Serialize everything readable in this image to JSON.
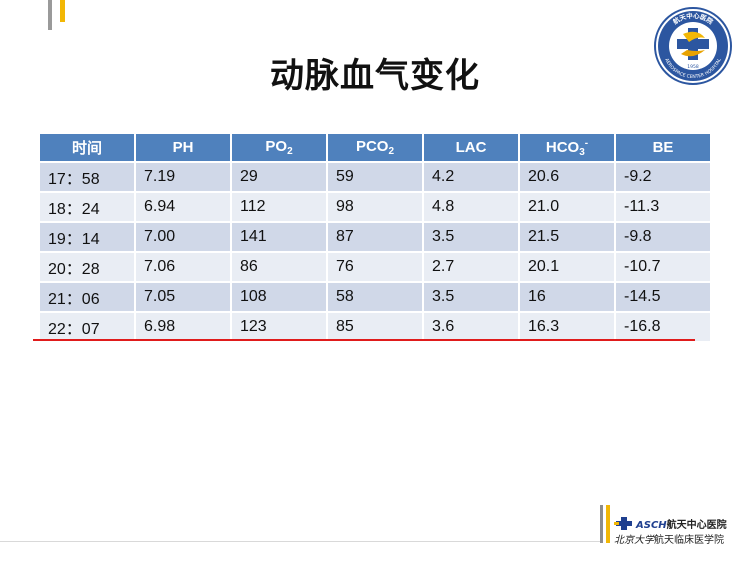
{
  "slide": {
    "title": "动脉血气变化"
  },
  "logo": {
    "top_text": "航天中心医院",
    "bottom_text": "AEROSPACE CENTER HOSPITAL",
    "year": "1958"
  },
  "table": {
    "headers": [
      {
        "base": "时间",
        "sub": "",
        "sup": ""
      },
      {
        "base": "PH",
        "sub": "",
        "sup": ""
      },
      {
        "base": "PO",
        "sub": "2",
        "sup": ""
      },
      {
        "base": "PCO",
        "sub": "2",
        "sup": ""
      },
      {
        "base": "LAC",
        "sub": "",
        "sup": ""
      },
      {
        "base": "HCO",
        "sub": "3",
        "sup": "-"
      },
      {
        "base": "BE",
        "sub": "",
        "sup": ""
      }
    ],
    "rows": [
      [
        "17：58",
        "7.19",
        "29",
        "59",
        "4.2",
        "20.6",
        "-9.2"
      ],
      [
        "18：24",
        "6.94",
        "112",
        "98",
        "4.8",
        "21.0",
        "-11.3"
      ],
      [
        "19：14",
        "7.00",
        "141",
        "87",
        "3.5",
        "21.5",
        "-9.8"
      ],
      [
        "20：28",
        "7.06",
        "86",
        "76",
        "2.7",
        "20.1",
        "-10.7"
      ],
      [
        "21：06",
        "7.05",
        "108",
        "58",
        "3.5",
        "16",
        "-14.5"
      ],
      [
        "22：07",
        "6.98",
        "123",
        "85",
        "3.6",
        "16.3",
        "-16.8"
      ]
    ]
  },
  "footer": {
    "brand": "ASCH",
    "line1": "航天中心医院",
    "line2_script": "北京大学",
    "line2": "航天临床医学院"
  },
  "colors": {
    "header_bg": "#4f81bd",
    "row_odd": "#d0d8e8",
    "row_even": "#e9edf4",
    "underline": "#e01b1b",
    "accent_gold": "#f2b705"
  }
}
